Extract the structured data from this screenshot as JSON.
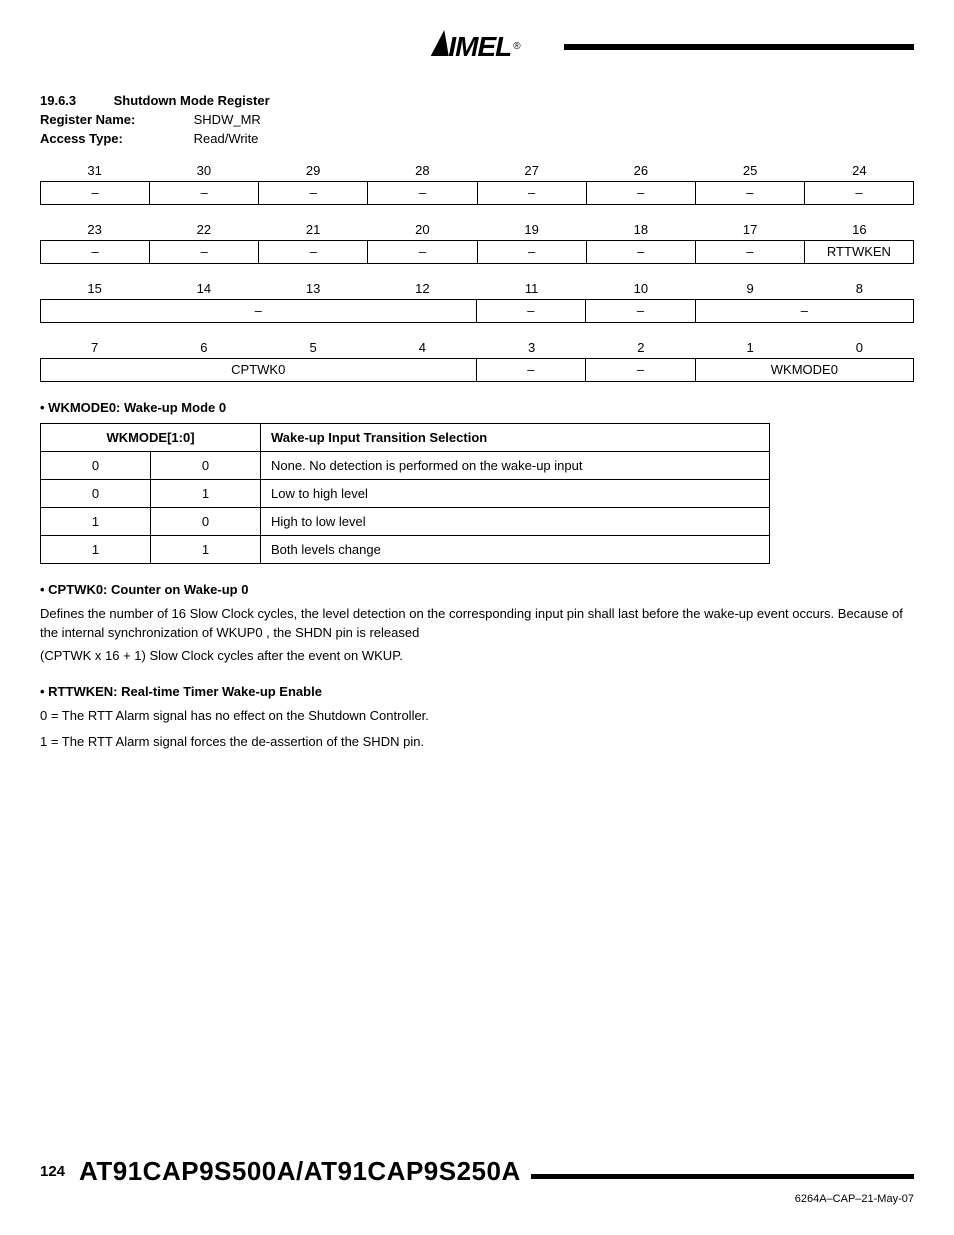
{
  "logo_text": "IMEL",
  "logo_reg": "®",
  "section": {
    "number": "19.6.3",
    "title": "Shutdown Mode Register"
  },
  "meta": {
    "register_name_label": "Register Name:",
    "register_name_value": "SHDW_MR",
    "access_type_label": "Access Type:",
    "access_type_value": "Read/Write"
  },
  "bit_rows": [
    {
      "nums": [
        "31",
        "30",
        "29",
        "28",
        "27",
        "26",
        "25",
        "24"
      ],
      "cells": [
        {
          "t": "–"
        },
        {
          "t": "–"
        },
        {
          "t": "–"
        },
        {
          "t": "–"
        },
        {
          "t": "–"
        },
        {
          "t": "–"
        },
        {
          "t": "–"
        },
        {
          "t": "–"
        }
      ]
    },
    {
      "nums": [
        "23",
        "22",
        "21",
        "20",
        "19",
        "18",
        "17",
        "16"
      ],
      "cells": [
        {
          "t": "–"
        },
        {
          "t": "–"
        },
        {
          "t": "–"
        },
        {
          "t": "–"
        },
        {
          "t": "–"
        },
        {
          "t": "–"
        },
        {
          "t": "–"
        },
        {
          "t": "RTTWKEN"
        }
      ]
    },
    {
      "nums": [
        "15",
        "14",
        "13",
        "12",
        "11",
        "10",
        "9",
        "8"
      ],
      "cells": [
        {
          "t": "–",
          "span": 4
        },
        {
          "t": "–"
        },
        {
          "t": "–"
        },
        {
          "t": "–",
          "span": 2
        }
      ]
    },
    {
      "nums": [
        "7",
        "6",
        "5",
        "4",
        "3",
        "2",
        "1",
        "0"
      ],
      "cells": [
        {
          "t": "CPTWK0",
          "span": 4
        },
        {
          "t": "–"
        },
        {
          "t": "–"
        },
        {
          "t": "WKMODE0",
          "span": 2
        }
      ]
    }
  ],
  "wkmode": {
    "heading": "WKMODE0: Wake-up Mode 0",
    "hdr1": "WKMODE[1:0]",
    "hdr2": "Wake-up Input Transition Selection",
    "rows": [
      {
        "b1": "0",
        "b0": "0",
        "desc": "None. No detection is performed on the wake-up input"
      },
      {
        "b1": "0",
        "b0": "1",
        "desc": "Low to high level"
      },
      {
        "b1": "1",
        "b0": "0",
        "desc": "High to low level"
      },
      {
        "b1": "1",
        "b0": "1",
        "desc": "Both levels change"
      }
    ]
  },
  "cptwk": {
    "heading": "CPTWK0: Counter on Wake-up 0",
    "p1": "Defines the number of 16 Slow Clock cycles, the level detection on the corresponding input pin shall last before the wake-up event occurs. Because of the internal synchronization of WKUP0 , the SHDN pin is released",
    "p2": "(CPTWK x 16 + 1) Slow Clock cycles after the event on WKUP."
  },
  "rttwken": {
    "heading": "RTTWKEN: Real-time Timer Wake-up Enable",
    "l0": "0 = The RTT Alarm signal has no effect on the Shutdown Controller.",
    "l1": "1 = The RTT Alarm signal forces the de-assertion of the SHDN pin."
  },
  "footer": {
    "page": "124",
    "title": "AT91CAP9S500A/AT91CAP9S250A",
    "docid": "6264A–CAP–21-May-07"
  }
}
